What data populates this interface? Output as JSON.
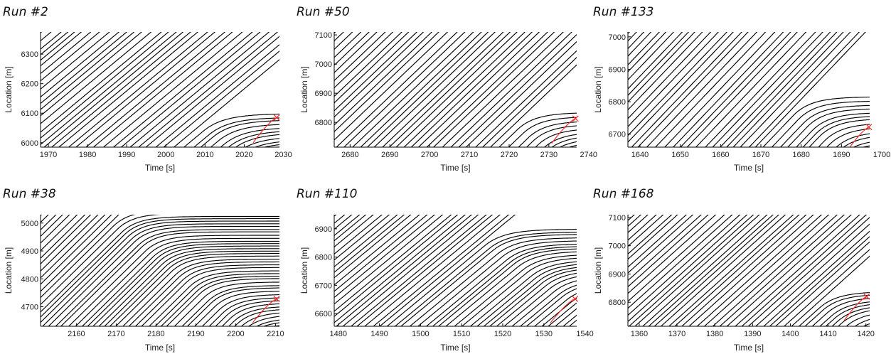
{
  "chart_data": [
    {
      "type": "line",
      "title": "Run #2",
      "xlabel": "Time [s]",
      "ylabel": "Location [m]",
      "xlim": [
        1968,
        2029
      ],
      "ylim": [
        5985,
        6375
      ],
      "xticks": [
        1970,
        1980,
        1990,
        2000,
        2010,
        2020,
        2030
      ],
      "yticks": [
        6000,
        6100,
        6200,
        6300
      ],
      "slope": 11,
      "gap": 2.1,
      "congestion": {
        "tm": 2016,
        "yc": 6085,
        "tend": 2029
      },
      "crash": {
        "t": 2028.3,
        "y": 6085
      },
      "grid": false,
      "legend": "none"
    },
    {
      "type": "line",
      "title": "Run #50",
      "xlabel": "Time [s]",
      "ylabel": "Location [m]",
      "xlim": [
        2676,
        2737
      ],
      "ylim": [
        6715,
        7110
      ],
      "xticks": [
        2680,
        2690,
        2700,
        2710,
        2720,
        2730,
        2740
      ],
      "yticks": [
        6800,
        6900,
        7000,
        7100
      ],
      "slope": 13,
      "gap": 2.0,
      "congestion": {
        "tm": 2728,
        "yc": 6815,
        "tend": 2737
      },
      "crash": {
        "t": 2736.7,
        "y": 6813
      },
      "grid": false,
      "legend": "none"
    },
    {
      "type": "line",
      "title": "Run #133",
      "xlabel": "Time [s]",
      "ylabel": "Location [m]",
      "xlim": [
        1637,
        1697
      ],
      "ylim": [
        6660,
        7015
      ],
      "xticks": [
        1640,
        1650,
        1660,
        1670,
        1680,
        1690,
        1700
      ],
      "yticks": [
        6700,
        6800,
        6900,
        7000
      ],
      "slope": 13,
      "gap": 1.9,
      "congestion": {
        "tm": 1684,
        "yc": 6795,
        "tend": 1697
      },
      "crash": {
        "t": 1696.8,
        "y": 6722
      },
      "grid": false,
      "legend": "none"
    },
    {
      "type": "line",
      "title": "Run #38",
      "xlabel": "Time [s]",
      "ylabel": "Location [m]",
      "xlim": [
        2151,
        2211
      ],
      "ylim": [
        4630,
        5030
      ],
      "xticks": [
        2160,
        2170,
        2180,
        2190,
        2200,
        2210
      ],
      "yticks": [
        4700,
        4800,
        4900,
        5000
      ],
      "slope": 14,
      "gap": 1.6,
      "congestion": {
        "tm": 2175,
        "yc": 5025,
        "tend": 2211
      },
      "crash": {
        "t": 2210.3,
        "y": 4728
      },
      "grid": false,
      "legend": "none"
    },
    {
      "type": "line",
      "title": "Run #110",
      "xlabel": "Time [s]",
      "ylabel": "Location [m]",
      "xlim": [
        1479,
        1538
      ],
      "ylim": [
        6555,
        6950
      ],
      "xticks": [
        1480,
        1490,
        1500,
        1510,
        1520,
        1530,
        1540
      ],
      "yticks": [
        6600,
        6700,
        6800,
        6900
      ],
      "slope": 12,
      "gap": 1.75,
      "congestion": {
        "tm": 1522,
        "yc": 6880,
        "tend": 1538
      },
      "crash": {
        "t": 1537.6,
        "y": 6652
      },
      "grid": false,
      "legend": "none"
    },
    {
      "type": "line",
      "title": "Run #168",
      "xlabel": "Time [s]",
      "ylabel": "Location [m]",
      "xlim": [
        1357,
        1421
      ],
      "ylim": [
        6715,
        7110
      ],
      "xticks": [
        1360,
        1370,
        1380,
        1390,
        1400,
        1410,
        1420
      ],
      "yticks": [
        6800,
        6900,
        7000,
        7100
      ],
      "slope": 12,
      "gap": 1.9,
      "congestion": {
        "tm": 1414,
        "yc": 6820,
        "tend": 1421
      },
      "crash": {
        "t": 1420.2,
        "y": 6820
      },
      "grid": false,
      "legend": "none"
    }
  ]
}
